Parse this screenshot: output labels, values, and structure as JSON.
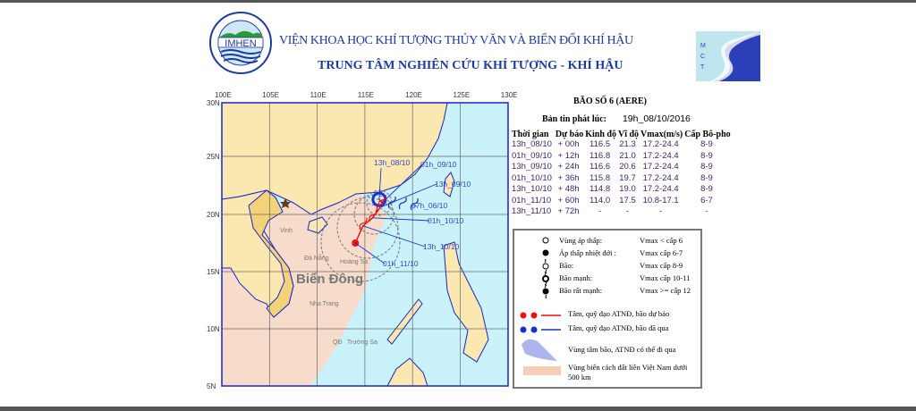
{
  "header": {
    "institute": "VIỆN KHOA HỌC KHÍ TƯỢNG THỦY VĂN VÀ BIẾN ĐỔI KHÍ HẬU",
    "center": "TRUNG TÂM NGHIÊN CỨU KHÍ TƯỢNG - KHÍ HẬU",
    "logo_left_text": "IMHEN",
    "logo_right_text": "CMCT"
  },
  "map": {
    "lon_ticks": [
      "100E",
      "105E",
      "110E",
      "115E",
      "120E",
      "125E",
      "130E"
    ],
    "lat_ticks": [
      "30N",
      "25N",
      "20N",
      "15N",
      "10N",
      "5N"
    ],
    "sea_label": "Biển Đông",
    "places": [
      "Vinh",
      "Đà Nẵng",
      "Hoàng Sa",
      "Nha Trang",
      "Trường Sa",
      "QĐ"
    ],
    "colors": {
      "land": "#fbe8b0",
      "sea": "#c9f2fb",
      "vn_sea_zone": "#f7dccb",
      "coast": "#1a22cc",
      "forecast": "#ee1111",
      "past": "#1a33cc"
    },
    "track_labels": [
      "13h_08/10",
      "01h_09/10",
      "13h_09/10",
      "07h_06/10",
      "01h_10/10",
      "13h_10/10",
      "01h_11/10"
    ]
  },
  "info": {
    "storm": "BÃO SỐ 6 (AERE)",
    "issued_label": "Bản tin phát lúc:",
    "issued_value": "19h_08/10/2016",
    "columns": [
      "Thời gian",
      "Dự báo",
      "Kinh độ",
      "Vĩ độ",
      "Vmax(m/s)",
      "Cấp Bô-pho"
    ],
    "rows": [
      [
        "13h_08/10",
        "+ 00h",
        "116.5",
        "21.3",
        "17.2-24.4",
        "8-9"
      ],
      [
        "01h_09/10",
        "+ 12h",
        "116.8",
        "21.0",
        "17.2-24.4",
        "8-9"
      ],
      [
        "13h_09/10",
        "+ 24h",
        "116.6",
        "20.6",
        "17.2-24.4",
        "8-9"
      ],
      [
        "01h_10/10",
        "+ 36h",
        "115.8",
        "19.7",
        "17.2-24.4",
        "8-9"
      ],
      [
        "13h_10/10",
        "+ 48h",
        "114.8",
        "19.0",
        "17.2-24.4",
        "8-9"
      ],
      [
        "01h_11/10",
        "+ 60h",
        "114.0",
        "17.5",
        "10.8-17.1",
        "6-7"
      ],
      [
        "13h_11/10",
        "+ 72h",
        "-",
        "-",
        "-",
        "-"
      ]
    ]
  },
  "legend": {
    "items": [
      {
        "label": "Vùng áp thấp:",
        "vmax": "Vmax < cấp 6"
      },
      {
        "label": "Áp thấp nhiệt đới :",
        "vmax": "Vmax cấp 6-7"
      },
      {
        "label": "Bão:",
        "vmax": "Vmax cấp 8-9"
      },
      {
        "label": "Bão mạnh:",
        "vmax": "Vmax cấp 10-11"
      },
      {
        "label": "Bão rất mạnh:",
        "vmax": "Vmax >= cấp 12"
      }
    ],
    "forecast_track": "Tâm, quỹ đạo ATNĐ, bão dự báo",
    "past_track": "Tâm, quỹ đạo ATNĐ, bão đã qua",
    "cone": "Vùng tâm bão, ATNĐ có thể đi qua",
    "zone": "Vùng biển cách đất liền Việt Nam dưới 500 km"
  }
}
